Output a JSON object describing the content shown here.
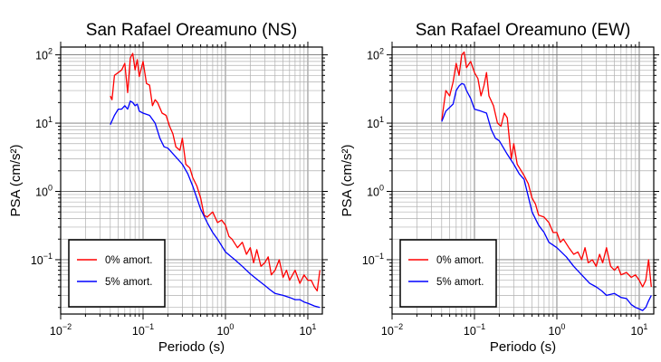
{
  "chart_data": [
    {
      "type": "line",
      "title": "San Rafael Oreamuno (NS)",
      "xlabel": "Periodo (s)",
      "ylabel": "PSA (cm/s²)",
      "x_scale": "log",
      "y_scale": "log",
      "xlim": [
        0.01,
        15
      ],
      "ylim": [
        0.016,
        130
      ],
      "grid": true,
      "legend_position": "bottom-left",
      "series": [
        {
          "name": "0% amort.",
          "color": "#ff0000",
          "points": [
            [
              0.04,
              25
            ],
            [
              0.042,
              22
            ],
            [
              0.045,
              50
            ],
            [
              0.05,
              55
            ],
            [
              0.055,
              60
            ],
            [
              0.06,
              75
            ],
            [
              0.065,
              28
            ],
            [
              0.07,
              90
            ],
            [
              0.075,
              105
            ],
            [
              0.08,
              60
            ],
            [
              0.085,
              85
            ],
            [
              0.09,
              48
            ],
            [
              0.1,
              80
            ],
            [
              0.11,
              38
            ],
            [
              0.12,
              36
            ],
            [
              0.13,
              18
            ],
            [
              0.14,
              22
            ],
            [
              0.15,
              20
            ],
            [
              0.17,
              14
            ],
            [
              0.19,
              13
            ],
            [
              0.21,
              9
            ],
            [
              0.23,
              7
            ],
            [
              0.25,
              4.5
            ],
            [
              0.28,
              4
            ],
            [
              0.3,
              6
            ],
            [
              0.33,
              2.5
            ],
            [
              0.37,
              2.2
            ],
            [
              0.4,
              1.6
            ],
            [
              0.45,
              1.2
            ],
            [
              0.5,
              0.8
            ],
            [
              0.55,
              0.45
            ],
            [
              0.6,
              0.42
            ],
            [
              0.7,
              0.5
            ],
            [
              0.8,
              0.35
            ],
            [
              0.9,
              0.38
            ],
            [
              1.0,
              0.32
            ],
            [
              1.1,
              0.22
            ],
            [
              1.2,
              0.2
            ],
            [
              1.4,
              0.15
            ],
            [
              1.6,
              0.18
            ],
            [
              1.8,
              0.12
            ],
            [
              2.0,
              0.15
            ],
            [
              2.2,
              0.09
            ],
            [
              2.4,
              0.14
            ],
            [
              2.7,
              0.08
            ],
            [
              3.0,
              0.09
            ],
            [
              3.3,
              0.11
            ],
            [
              3.6,
              0.06
            ],
            [
              4.0,
              0.07
            ],
            [
              4.5,
              0.1
            ],
            [
              5.0,
              0.055
            ],
            [
              5.5,
              0.07
            ],
            [
              6.0,
              0.05
            ],
            [
              7.0,
              0.07
            ],
            [
              8.0,
              0.045
            ],
            [
              9.0,
              0.06
            ],
            [
              10.0,
              0.05
            ],
            [
              11.0,
              0.05
            ],
            [
              12.0,
              0.04
            ],
            [
              13.0,
              0.035
            ],
            [
              14.0,
              0.07
            ]
          ]
        },
        {
          "name": "5% amort.",
          "color": "#0000ff",
          "points": [
            [
              0.04,
              9.5
            ],
            [
              0.045,
              13
            ],
            [
              0.05,
              16
            ],
            [
              0.055,
              16
            ],
            [
              0.06,
              18
            ],
            [
              0.065,
              16
            ],
            [
              0.07,
              21
            ],
            [
              0.075,
              20
            ],
            [
              0.08,
              18
            ],
            [
              0.085,
              19
            ],
            [
              0.09,
              15
            ],
            [
              0.1,
              14
            ],
            [
              0.12,
              13
            ],
            [
              0.14,
              10
            ],
            [
              0.16,
              6
            ],
            [
              0.18,
              4.5
            ],
            [
              0.2,
              4.3
            ],
            [
              0.25,
              3.2
            ],
            [
              0.3,
              2.5
            ],
            [
              0.35,
              1.8
            ],
            [
              0.4,
              1.2
            ],
            [
              0.5,
              0.55
            ],
            [
              0.6,
              0.35
            ],
            [
              0.7,
              0.25
            ],
            [
              0.8,
              0.2
            ],
            [
              1.0,
              0.13
            ],
            [
              1.3,
              0.1
            ],
            [
              1.6,
              0.08
            ],
            [
              2.0,
              0.062
            ],
            [
              2.5,
              0.05
            ],
            [
              3.0,
              0.042
            ],
            [
              3.5,
              0.036
            ],
            [
              4.0,
              0.032
            ],
            [
              5.0,
              0.03
            ],
            [
              6.0,
              0.028
            ],
            [
              7.0,
              0.026
            ],
            [
              8.0,
              0.026
            ],
            [
              9.0,
              0.024
            ],
            [
              10.0,
              0.023
            ],
            [
              11.0,
              0.022
            ],
            [
              12.0,
              0.021
            ],
            [
              14.0,
              0.02
            ]
          ]
        }
      ]
    },
    {
      "type": "line",
      "title": "San Rafael Oreamuno (EW)",
      "xlabel": "Periodo (s)",
      "ylabel": "PSA (cm/s²)",
      "x_scale": "log",
      "y_scale": "log",
      "xlim": [
        0.01,
        15
      ],
      "ylim": [
        0.016,
        130
      ],
      "grid": true,
      "legend_position": "bottom-left",
      "series": [
        {
          "name": "0% amort.",
          "color": "#ff0000",
          "points": [
            [
              0.04,
              11
            ],
            [
              0.045,
              30
            ],
            [
              0.05,
              25
            ],
            [
              0.055,
              40
            ],
            [
              0.06,
              75
            ],
            [
              0.065,
              50
            ],
            [
              0.07,
              100
            ],
            [
              0.075,
              110
            ],
            [
              0.08,
              65
            ],
            [
              0.09,
              80
            ],
            [
              0.1,
              55
            ],
            [
              0.11,
              45
            ],
            [
              0.12,
              25
            ],
            [
              0.13,
              35
            ],
            [
              0.14,
              55
            ],
            [
              0.15,
              25
            ],
            [
              0.17,
              18
            ],
            [
              0.19,
              10
            ],
            [
              0.21,
              9
            ],
            [
              0.23,
              14
            ],
            [
              0.25,
              12
            ],
            [
              0.28,
              3
            ],
            [
              0.3,
              5
            ],
            [
              0.33,
              2.5
            ],
            [
              0.37,
              2
            ],
            [
              0.4,
              1.7
            ],
            [
              0.45,
              1.3
            ],
            [
              0.5,
              0.8
            ],
            [
              0.55,
              0.65
            ],
            [
              0.6,
              0.45
            ],
            [
              0.7,
              0.42
            ],
            [
              0.8,
              0.35
            ],
            [
              0.9,
              0.25
            ],
            [
              1.0,
              0.25
            ],
            [
              1.1,
              0.18
            ],
            [
              1.2,
              0.2
            ],
            [
              1.4,
              0.15
            ],
            [
              1.6,
              0.12
            ],
            [
              1.8,
              0.13
            ],
            [
              2.0,
              0.1
            ],
            [
              2.2,
              0.15
            ],
            [
              2.4,
              0.09
            ],
            [
              2.7,
              0.1
            ],
            [
              3.0,
              0.08
            ],
            [
              3.3,
              0.12
            ],
            [
              3.6,
              0.09
            ],
            [
              4.0,
              0.15
            ],
            [
              4.5,
              0.08
            ],
            [
              5.0,
              0.07
            ],
            [
              5.5,
              0.08
            ],
            [
              6.0,
              0.06
            ],
            [
              7.0,
              0.065
            ],
            [
              8.0,
              0.055
            ],
            [
              9.0,
              0.06
            ],
            [
              10.0,
              0.05
            ],
            [
              11.0,
              0.04
            ],
            [
              12.0,
              0.05
            ],
            [
              13.0,
              0.1
            ],
            [
              14.0,
              0.04
            ]
          ]
        },
        {
          "name": "5% amort.",
          "color": "#0000ff",
          "points": [
            [
              0.04,
              10.5
            ],
            [
              0.045,
              15
            ],
            [
              0.05,
              17
            ],
            [
              0.055,
              19
            ],
            [
              0.06,
              30
            ],
            [
              0.065,
              35
            ],
            [
              0.07,
              38
            ],
            [
              0.075,
              37
            ],
            [
              0.08,
              30
            ],
            [
              0.09,
              23
            ],
            [
              0.1,
              16
            ],
            [
              0.12,
              15
            ],
            [
              0.14,
              14
            ],
            [
              0.16,
              8
            ],
            [
              0.18,
              6
            ],
            [
              0.2,
              5.5
            ],
            [
              0.25,
              3.5
            ],
            [
              0.3,
              2.5
            ],
            [
              0.35,
              1.8
            ],
            [
              0.4,
              1.5
            ],
            [
              0.5,
              0.5
            ],
            [
              0.6,
              0.32
            ],
            [
              0.7,
              0.25
            ],
            [
              0.8,
              0.18
            ],
            [
              1.0,
              0.15
            ],
            [
              1.3,
              0.11
            ],
            [
              1.6,
              0.08
            ],
            [
              2.0,
              0.06
            ],
            [
              2.5,
              0.045
            ],
            [
              3.0,
              0.04
            ],
            [
              3.5,
              0.035
            ],
            [
              4.0,
              0.03
            ],
            [
              5.0,
              0.032
            ],
            [
              6.0,
              0.028
            ],
            [
              7.0,
              0.027
            ],
            [
              8.0,
              0.022
            ],
            [
              9.0,
              0.02
            ],
            [
              10.0,
              0.019
            ],
            [
              11.0,
              0.018
            ],
            [
              12.0,
              0.02
            ],
            [
              13.0,
              0.025
            ],
            [
              14.0,
              0.03
            ]
          ]
        }
      ]
    }
  ]
}
